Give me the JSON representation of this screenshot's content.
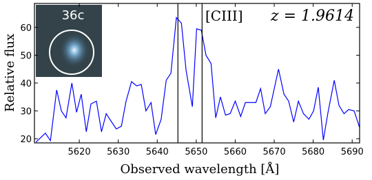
{
  "chart_data": {
    "type": "line",
    "inset_label": "36c",
    "line_label": "[CIII]",
    "redshift_label": "z = 1.9614",
    "xlabel": "Observed wavelength [Å]",
    "ylabel": "Relative flux",
    "x": [
      5608.9,
      5611.3,
      5612.6,
      5614.2,
      5615.4,
      5616.6,
      5618.1,
      5619.3,
      5620.5,
      5621.8,
      5623.0,
      5624.4,
      5625.7,
      5626.9,
      5628.3,
      5629.5,
      5630.8,
      5632.0,
      5633.4,
      5634.7,
      5635.9,
      5637.1,
      5638.4,
      5639.6,
      5641.0,
      5642.3,
      5643.5,
      5644.9,
      5646.2,
      5647.4,
      5649.0,
      5650.1,
      5651.3,
      5652.5,
      5653.8,
      5655.0,
      5656.2,
      5657.5,
      5658.7,
      5660.0,
      5661.4,
      5662.6,
      5663.8,
      5665.3,
      5666.5,
      5667.7,
      5669.0,
      5671.1,
      5672.5,
      5673.7,
      5675.0,
      5676.2,
      5677.5,
      5678.9,
      5680.1,
      5681.3,
      5682.6,
      5683.8,
      5685.4,
      5686.6,
      5687.9,
      5689.1,
      5690.5,
      5691.9
    ],
    "series": [
      {
        "color": "#0000ff",
        "values": [
          18.8,
          22,
          19.3,
          37.5,
          30,
          27.5,
          40,
          29.5,
          36,
          22.5,
          32.5,
          33.5,
          22.5,
          29,
          26,
          23.5,
          24.5,
          33.5,
          40.5,
          39,
          39.5,
          30,
          33,
          21.5,
          27,
          41,
          43.5,
          63.5,
          61.5,
          44.5,
          31.5,
          59.5,
          59,
          50,
          47,
          27.5,
          35,
          28.5,
          29,
          33.5,
          28,
          33,
          33,
          33,
          38,
          29,
          31.5,
          45,
          36,
          33.5,
          26,
          33.5,
          29,
          27,
          30,
          38.5,
          19.5,
          29.5,
          41,
          32,
          29,
          30.5,
          30,
          24
        ]
      }
    ],
    "vlines": [
      5645.3,
      5651.5
    ],
    "xlim": [
      5608.5,
      5691.9
    ],
    "ylim": [
      18.5,
      68.6
    ],
    "xticks": [
      5620,
      5630,
      5640,
      5650,
      5660,
      5670,
      5680,
      5690
    ],
    "yticks": [
      20,
      30,
      40,
      50,
      60
    ]
  }
}
